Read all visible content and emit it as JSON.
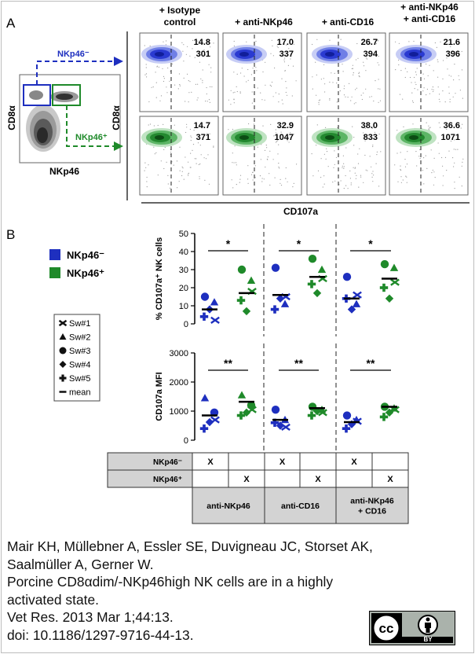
{
  "figure": {
    "panel_a_label": "A",
    "panel_b_label": "B",
    "colors": {
      "nkp46_neg": "#1e2fbf",
      "nkp46_pos": "#1f8a2a",
      "gray_header": "#d3d3d3"
    }
  },
  "panel_a": {
    "gate_plot": {
      "ylabel": "CD8α",
      "xlabel": "NKp46"
    },
    "gate_labels": {
      "neg": "NKp46⁻",
      "pos": "NKp46⁺"
    },
    "col_headers": [
      {
        "line1": "+ Isotype",
        "line2": "control"
      },
      {
        "line1": "+ anti-NKp46",
        "line2": ""
      },
      {
        "line1": "+ anti-CD16",
        "line2": ""
      },
      {
        "line1": "+ anti-NKp46",
        "line2": "+ anti-CD16"
      }
    ],
    "row_ylabel": "CD8α",
    "xaxis_label": "CD107a",
    "cell_values": {
      "neg": [
        [
          "14.8",
          "301"
        ],
        [
          "17.0",
          "337"
        ],
        [
          "26.7",
          "394"
        ],
        [
          "21.6",
          "396"
        ]
      ],
      "pos": [
        [
          "14.7",
          "371"
        ],
        [
          "32.9",
          "1047"
        ],
        [
          "38.0",
          "833"
        ],
        [
          "36.6",
          "1071"
        ]
      ]
    }
  },
  "panel_b": {
    "legend": {
      "neg": "NKp46⁻",
      "pos": "NKp46⁺"
    },
    "symbol_legend": [
      "Sw#1",
      "Sw#2",
      "Sw#3",
      "Sw#4",
      "Sw#5",
      "mean"
    ],
    "table": {
      "row_labels": [
        "NKp46⁻",
        "NKp46⁺"
      ],
      "neg_marks": [
        "X",
        "",
        "X",
        "",
        "X",
        ""
      ],
      "pos_marks": [
        "",
        "X",
        "",
        "X",
        "",
        "X"
      ],
      "group_labels": [
        "anti-NKp46",
        "anti-CD16",
        "anti-NKp46\n+ CD16"
      ]
    }
  },
  "chart_data": [
    {
      "type": "scatter",
      "ylabel": "% CD107a⁺ NK cells",
      "ylim": [
        0,
        50
      ],
      "yticks": [
        0,
        10,
        20,
        30,
        40,
        50
      ],
      "groups": [
        "anti-NKp46",
        "anti-CD16",
        "anti-NKp46 + CD16"
      ],
      "significance": [
        "*",
        "*",
        "*"
      ],
      "series": [
        {
          "name": "NKp46⁻",
          "group": "anti-NKp46",
          "points": [
            {
              "sym": "circle",
              "y": 15
            },
            {
              "sym": "triangle",
              "y": 12
            },
            {
              "sym": "diamond",
              "y": 8
            },
            {
              "sym": "plus",
              "y": 4
            },
            {
              "sym": "x",
              "y": 2
            }
          ],
          "mean": 8
        },
        {
          "name": "NKp46⁺",
          "group": "anti-NKp46",
          "points": [
            {
              "sym": "circle",
              "y": 30
            },
            {
              "sym": "triangle",
              "y": 24
            },
            {
              "sym": "diamond",
              "y": 7
            },
            {
              "sym": "plus",
              "y": 13
            },
            {
              "sym": "x",
              "y": 18
            }
          ],
          "mean": 17
        },
        {
          "name": "NKp46⁻",
          "group": "anti-CD16",
          "points": [
            {
              "sym": "circle",
              "y": 31
            },
            {
              "sym": "triangle",
              "y": 11
            },
            {
              "sym": "diamond",
              "y": 14
            },
            {
              "sym": "plus",
              "y": 8
            },
            {
              "sym": "x",
              "y": 15
            }
          ],
          "mean": 16
        },
        {
          "name": "NKp46⁺",
          "group": "anti-CD16",
          "points": [
            {
              "sym": "circle",
              "y": 36
            },
            {
              "sym": "triangle",
              "y": 30
            },
            {
              "sym": "diamond",
              "y": 17
            },
            {
              "sym": "plus",
              "y": 22
            },
            {
              "sym": "x",
              "y": 25
            }
          ],
          "mean": 26
        },
        {
          "name": "NKp46⁻",
          "group": "anti-NKp46 + CD16",
          "points": [
            {
              "sym": "circle",
              "y": 26
            },
            {
              "sym": "triangle",
              "y": 11
            },
            {
              "sym": "diamond",
              "y": 8
            },
            {
              "sym": "plus",
              "y": 14
            },
            {
              "sym": "x",
              "y": 16
            }
          ],
          "mean": 14
        },
        {
          "name": "NKp46⁺",
          "group": "anti-NKp46 + CD16",
          "points": [
            {
              "sym": "circle",
              "y": 33
            },
            {
              "sym": "triangle",
              "y": 31
            },
            {
              "sym": "diamond",
              "y": 14
            },
            {
              "sym": "plus",
              "y": 20
            },
            {
              "sym": "x",
              "y": 23
            }
          ],
          "mean": 25
        }
      ]
    },
    {
      "type": "scatter",
      "ylabel": "CD107a MFI",
      "ylim": [
        0,
        3000
      ],
      "yticks": [
        0,
        1000,
        2000,
        3000
      ],
      "groups": [
        "anti-NKp46",
        "anti-CD16",
        "anti-NKp46 + CD16"
      ],
      "significance": [
        "**",
        "**",
        "**"
      ],
      "series": [
        {
          "name": "NKp46⁻",
          "group": "anti-NKp46",
          "points": [
            {
              "sym": "triangle",
              "y": 1450
            },
            {
              "sym": "circle",
              "y": 950
            },
            {
              "sym": "diamond",
              "y": 620
            },
            {
              "sym": "plus",
              "y": 400
            },
            {
              "sym": "x",
              "y": 700
            }
          ],
          "mean": 850
        },
        {
          "name": "NKp46⁺",
          "group": "anti-NKp46",
          "points": [
            {
              "sym": "triangle",
              "y": 1550
            },
            {
              "sym": "circle",
              "y": 1200
            },
            {
              "sym": "diamond",
              "y": 950
            },
            {
              "sym": "plus",
              "y": 850
            },
            {
              "sym": "x",
              "y": 1050
            }
          ],
          "mean": 1320
        },
        {
          "name": "NKp46⁻",
          "group": "anti-CD16",
          "points": [
            {
              "sym": "circle",
              "y": 1050
            },
            {
              "sym": "triangle",
              "y": 700
            },
            {
              "sym": "diamond",
              "y": 500
            },
            {
              "sym": "plus",
              "y": 600
            },
            {
              "sym": "x",
              "y": 450
            }
          ],
          "mean": 700
        },
        {
          "name": "NKp46⁺",
          "group": "anti-CD16",
          "points": [
            {
              "sym": "circle",
              "y": 1150
            },
            {
              "sym": "triangle",
              "y": 1050
            },
            {
              "sym": "diamond",
              "y": 1000
            },
            {
              "sym": "plus",
              "y": 850
            },
            {
              "sym": "x",
              "y": 950
            }
          ],
          "mean": 1100
        },
        {
          "name": "NKp46⁻",
          "group": "anti-NKp46 + CD16",
          "points": [
            {
              "sym": "circle",
              "y": 850
            },
            {
              "sym": "triangle",
              "y": 700
            },
            {
              "sym": "diamond",
              "y": 550
            },
            {
              "sym": "plus",
              "y": 400
            },
            {
              "sym": "x",
              "y": 650
            }
          ],
          "mean": 620
        },
        {
          "name": "NKp46⁺",
          "group": "anti-NKp46 + CD16",
          "points": [
            {
              "sym": "circle",
              "y": 1150
            },
            {
              "sym": "triangle",
              "y": 1100
            },
            {
              "sym": "diamond",
              "y": 950
            },
            {
              "sym": "plus",
              "y": 800
            },
            {
              "sym": "x",
              "y": 1050
            }
          ],
          "mean": 1150
        }
      ]
    }
  ],
  "citation": {
    "lines": [
      "Mair KH, Müllebner A, Essler SE, Duvigneau JC, Storset AK,",
      "Saalmüller A, Gerner W.",
      "Porcine CD8αdim/-NKp46high NK cells are in a highly",
      "activated state.",
      "Vet Res. 2013 Mar 1;44:13.",
      "doi: 10.1186/1297-9716-44-13."
    ]
  },
  "license_badge": {
    "left": "cc",
    "right": "BY"
  }
}
